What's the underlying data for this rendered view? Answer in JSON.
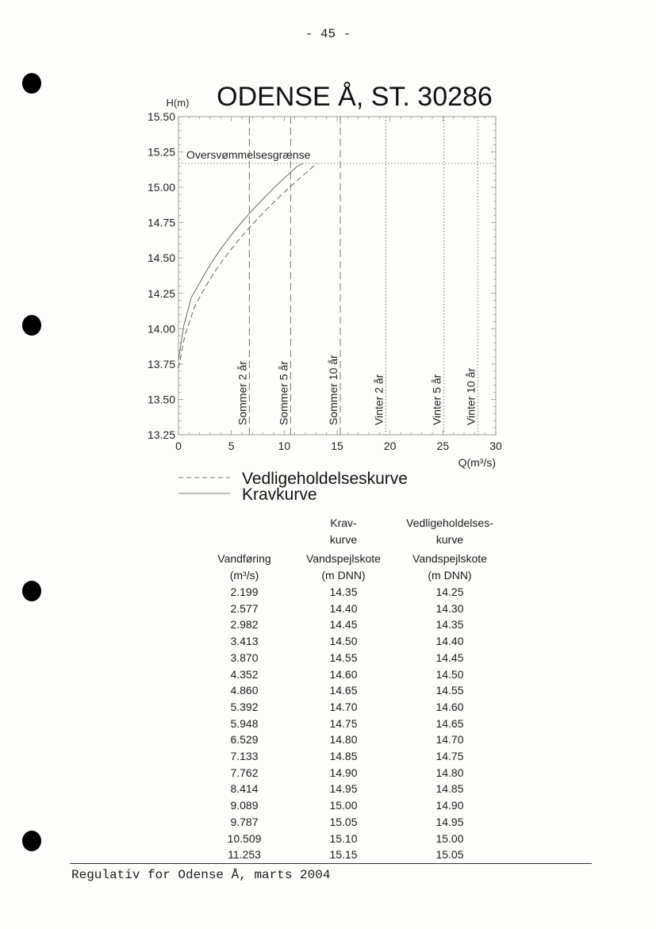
{
  "page_number": "- 45 -",
  "footer": "Regulativ for Odense Å, marts 2004",
  "chart_data": {
    "type": "line",
    "title": "ODENSE Å, ST. 30286",
    "ylabel": "H(m)",
    "xlabel": "Q(m³/s)",
    "xlim": [
      0,
      30
    ],
    "ylim": [
      13.25,
      15.5
    ],
    "xticks": [
      "0",
      "5",
      "10",
      "15",
      "20",
      "25",
      "30"
    ],
    "yticks": [
      "15.50",
      "15.25",
      "15.00",
      "14.75",
      "14.50",
      "14.25",
      "14.00",
      "13.75",
      "13.50",
      "13.25"
    ],
    "grid": false,
    "legend_position": "bottom",
    "flood_limit": {
      "label": "Oversvømmelsesgrænse",
      "y": 15.17
    },
    "reference_lines": [
      {
        "label": "Sommer 2 år",
        "x": 6.7,
        "style": "dashed"
      },
      {
        "label": "Sommer 5 år",
        "x": 10.6,
        "style": "dashed"
      },
      {
        "label": "Sommer 10 år",
        "x": 15.3,
        "style": "dashed"
      },
      {
        "label": "Vinter 2 år",
        "x": 19.6,
        "style": "dotted"
      },
      {
        "label": "Vinter 5 år",
        "x": 25.1,
        "style": "dotted"
      },
      {
        "label": "Vinter 10 år",
        "x": 28.3,
        "style": "dotted"
      }
    ],
    "series": [
      {
        "name": "Vedligeholdelseskurve",
        "style": "dashed",
        "x": [
          0,
          0.6,
          1.5,
          2.199,
          2.577,
          2.982,
          3.413,
          3.87,
          4.352,
          4.86,
          5.392,
          5.948,
          6.529,
          7.133,
          7.762,
          8.414,
          9.089,
          9.787,
          10.509,
          11.253,
          13.1
        ],
        "y": [
          13.72,
          13.95,
          14.15,
          14.25,
          14.3,
          14.35,
          14.4,
          14.45,
          14.5,
          14.55,
          14.6,
          14.65,
          14.7,
          14.75,
          14.8,
          14.85,
          14.9,
          14.95,
          15.0,
          15.05,
          15.17
        ]
      },
      {
        "name": "Kravkurve",
        "style": "solid",
        "x": [
          0,
          0.5,
          1.2,
          2.199,
          2.577,
          2.982,
          3.413,
          3.87,
          4.352,
          4.86,
          5.392,
          5.948,
          6.529,
          7.133,
          7.762,
          8.414,
          9.089,
          9.787,
          10.509,
          11.253,
          11.8
        ],
        "y": [
          13.78,
          14.02,
          14.22,
          14.35,
          14.4,
          14.45,
          14.5,
          14.55,
          14.6,
          14.65,
          14.7,
          14.75,
          14.8,
          14.85,
          14.9,
          14.95,
          15.0,
          15.05,
          15.1,
          15.15,
          15.17
        ]
      }
    ]
  },
  "table": {
    "header_top": [
      "",
      "Krav-",
      "Vedligeholdelses-"
    ],
    "header_mid": [
      "",
      "kurve",
      "kurve"
    ],
    "header_label": [
      "Vandføring",
      "Vandspejlskote",
      "Vandspejlskote"
    ],
    "header_unit": [
      "(m³/s)",
      "(m DNN)",
      "(m DNN)"
    ],
    "rows": [
      [
        "2.199",
        "14.35",
        "14.25"
      ],
      [
        "2.577",
        "14.40",
        "14.30"
      ],
      [
        "2.982",
        "14.45",
        "14.35"
      ],
      [
        "3.413",
        "14.50",
        "14.40"
      ],
      [
        "3.870",
        "14.55",
        "14.45"
      ],
      [
        "4.352",
        "14.60",
        "14.50"
      ],
      [
        "4.860",
        "14.65",
        "14.55"
      ],
      [
        "5.392",
        "14.70",
        "14.60"
      ],
      [
        "5.948",
        "14.75",
        "14.65"
      ],
      [
        "6.529",
        "14.80",
        "14.70"
      ],
      [
        "7.133",
        "14.85",
        "14.75"
      ],
      [
        "7.762",
        "14.90",
        "14.80"
      ],
      [
        "8.414",
        "14.95",
        "14.85"
      ],
      [
        "9.089",
        "15.00",
        "14.90"
      ],
      [
        "9.787",
        "15.05",
        "14.95"
      ],
      [
        "10.509",
        "15.10",
        "15.00"
      ],
      [
        "11.253",
        "15.15",
        "15.05"
      ]
    ]
  }
}
